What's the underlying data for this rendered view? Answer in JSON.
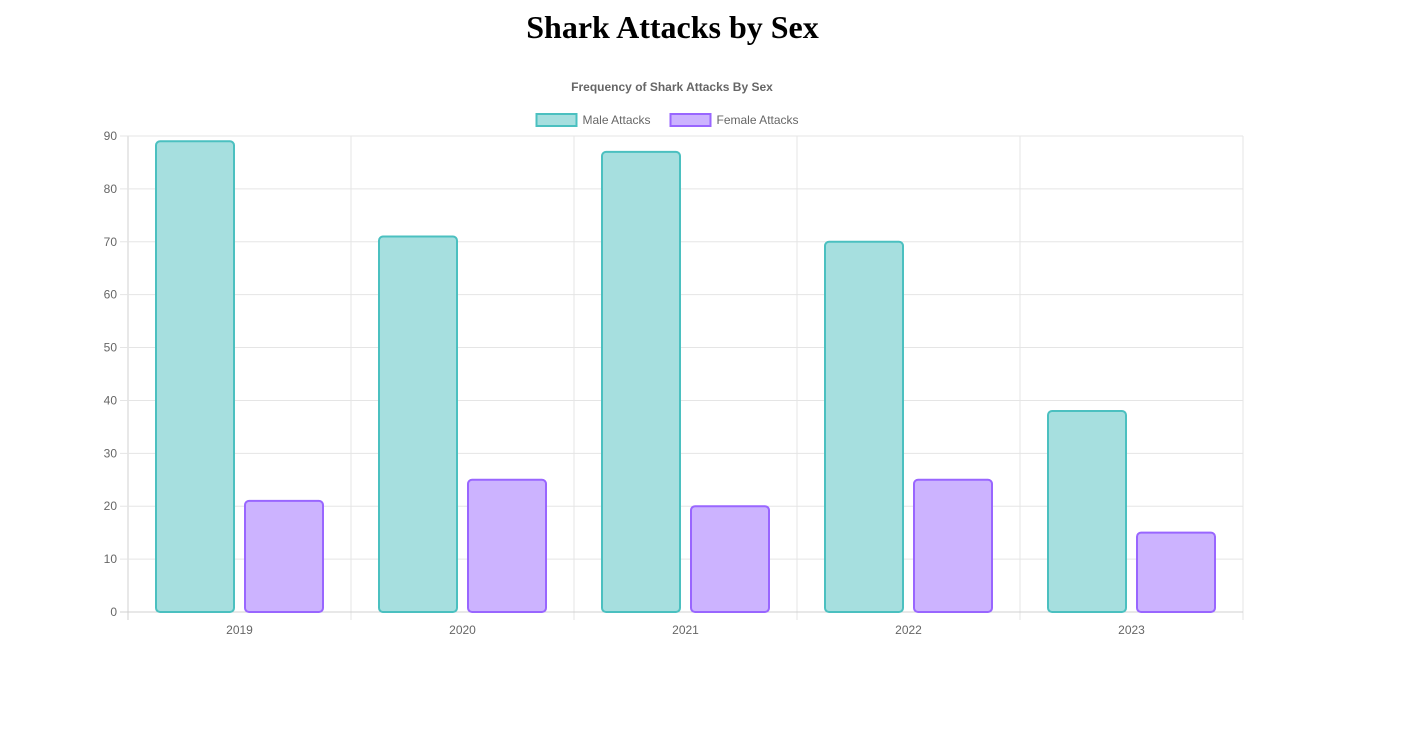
{
  "page": {
    "heading": "Shark Attacks by Sex"
  },
  "chart_data": {
    "type": "bar",
    "title": "Frequency of Shark Attacks By Sex",
    "categories": [
      "2019",
      "2020",
      "2021",
      "2022",
      "2023"
    ],
    "series": [
      {
        "name": "Male Attacks",
        "values": [
          89,
          71,
          87,
          70,
          38
        ],
        "fill": "#a6dfdf",
        "stroke": "#4bc0c0"
      },
      {
        "name": "Female Attacks",
        "values": [
          21,
          25,
          20,
          25,
          15
        ],
        "fill": "#ccb3ff",
        "stroke": "#9966ff"
      }
    ],
    "ylim": [
      0,
      90
    ],
    "y_ticks": [
      0,
      10,
      20,
      30,
      40,
      50,
      60,
      70,
      80,
      90
    ],
    "xlabel": "",
    "ylabel": "",
    "grid": true,
    "legend_position": "top-center"
  }
}
